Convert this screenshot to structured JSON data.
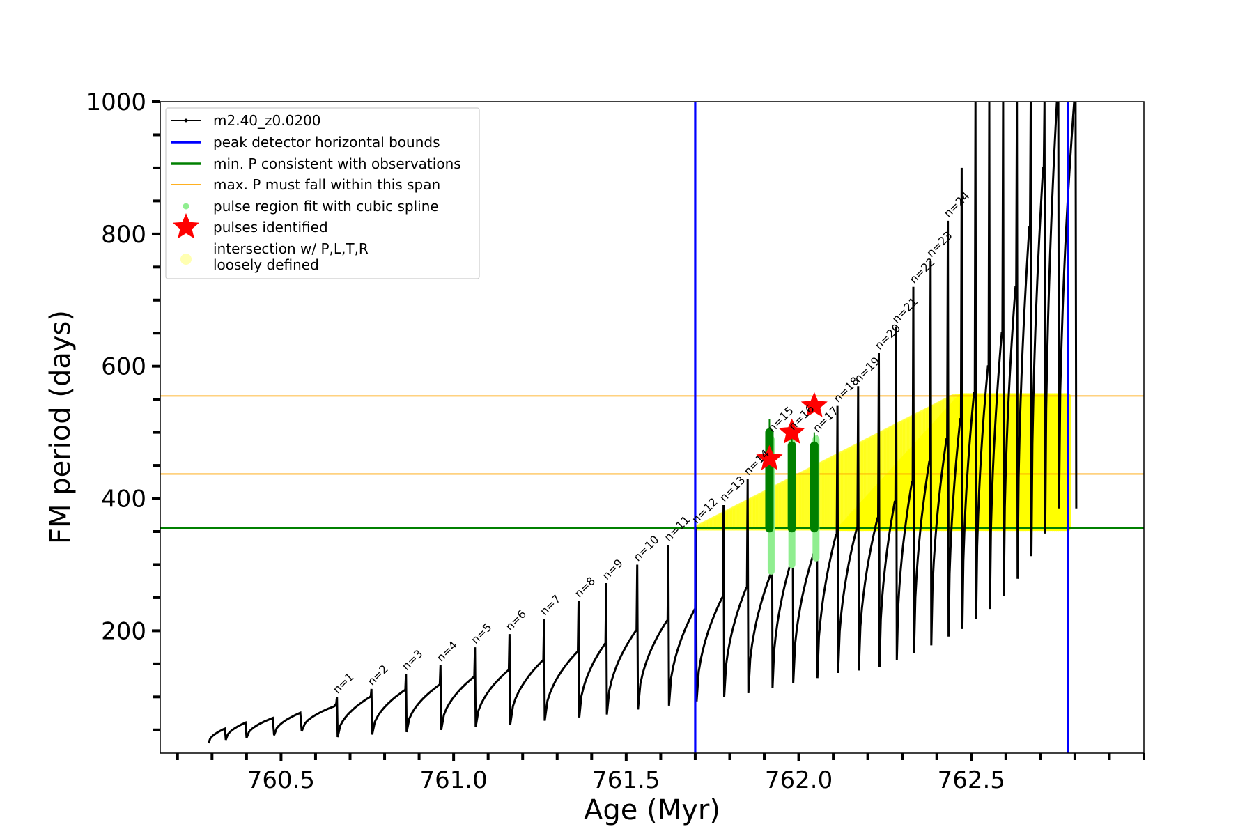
{
  "chart_data": {
    "type": "line",
    "title": "",
    "xlabel": "Age (Myr)",
    "ylabel": "FM period (days)",
    "xlim": [
      760.15,
      763.0
    ],
    "ylim": [
      15,
      1000
    ],
    "xticks": [
      760.5,
      761.0,
      761.5,
      762.0,
      762.5
    ],
    "xtick_labels": [
      "760.5",
      "761.0",
      "761.5",
      "762.0",
      "762.5"
    ],
    "yticks": [
      200,
      400,
      600,
      800,
      1000
    ],
    "ytick_labels": [
      "200",
      "400",
      "600",
      "800",
      "1000"
    ],
    "grid": false,
    "legend_position": "top-left",
    "colors": {
      "series": "#000000",
      "bounds": "#0000ff",
      "min_p": "#008000",
      "max_p": "#ffa500",
      "spline": "#90ee90",
      "pulses": "#ff0000",
      "intersection": "#ffff00"
    },
    "legend": [
      {
        "label": "m2.40_z0.0200",
        "marker": "line-dot"
      },
      {
        "label": "peak detector horizontal bounds",
        "marker": "blue-line"
      },
      {
        "label": "min. P consistent with observations",
        "marker": "green-line"
      },
      {
        "label": "max. P must fall within this span",
        "marker": "orange-line"
      },
      {
        "label": "pulse region fit with cubic spline",
        "marker": "lightgreen-dot"
      },
      {
        "label": "pulses identified",
        "marker": "red-star"
      },
      {
        "label": "intersection w/ P,L,T,R",
        "label2": "loosely defined",
        "marker": "yellow-dot"
      }
    ],
    "series_name": "m2.40_z0.0200",
    "pulses": [
      {
        "label": "n=1",
        "x": 760.66,
        "peak": 100,
        "pre": 90
      },
      {
        "label": "n=2",
        "x": 760.76,
        "peak": 112,
        "pre": 100
      },
      {
        "label": "n=3",
        "x": 760.86,
        "peak": 135,
        "pre": 110
      },
      {
        "label": "n=4",
        "x": 760.96,
        "peak": 148,
        "pre": 118
      },
      {
        "label": "n=5",
        "x": 761.06,
        "peak": 175,
        "pre": 130
      },
      {
        "label": "n=6",
        "x": 761.16,
        "peak": 195,
        "pre": 140
      },
      {
        "label": "n=7",
        "x": 761.26,
        "peak": 218,
        "pre": 155
      },
      {
        "label": "n=8",
        "x": 761.36,
        "peak": 245,
        "pre": 168
      },
      {
        "label": "n=9",
        "x": 761.44,
        "peak": 272,
        "pre": 180
      },
      {
        "label": "n=10",
        "x": 761.53,
        "peak": 300,
        "pre": 200
      },
      {
        "label": "n=11",
        "x": 761.62,
        "peak": 330,
        "pre": 215
      },
      {
        "label": "n=12",
        "x": 761.7,
        "peak": 357,
        "pre": 232
      },
      {
        "label": "n=13",
        "x": 761.78,
        "peak": 390,
        "pre": 250
      },
      {
        "label": "n=14",
        "x": 761.85,
        "peak": 430,
        "pre": 265
      },
      {
        "label": "n=15",
        "x": 761.92,
        "peak": 495,
        "pre": 285
      },
      {
        "label": "n=16",
        "x": 761.98,
        "peak": 498,
        "pre": 305
      },
      {
        "label": "n=17",
        "x": 762.05,
        "peak": 495,
        "pre": 325
      },
      {
        "label": "n=18",
        "x": 762.11,
        "peak": 540,
        "pre": 345
      },
      {
        "label": "n=19",
        "x": 762.17,
        "peak": 570,
        "pre": 355
      },
      {
        "label": "n=20",
        "x": 762.23,
        "peak": 620,
        "pre": 370
      },
      {
        "label": "n=21",
        "x": 762.28,
        "peak": 660,
        "pre": 395
      },
      {
        "label": "n=22",
        "x": 762.33,
        "peak": 720,
        "pre": 425
      },
      {
        "label": "n=23",
        "x": 762.38,
        "peak": 760,
        "pre": 455
      },
      {
        "label": "n=24",
        "x": 762.43,
        "peak": 820,
        "pre": 490
      },
      {
        "label": "",
        "x": 762.47,
        "peak": 900,
        "pre": 520
      },
      {
        "label": "",
        "x": 762.51,
        "peak": 1000,
        "pre": 560
      },
      {
        "label": "",
        "x": 762.55,
        "peak": 1000,
        "pre": 600
      },
      {
        "label": "",
        "x": 762.59,
        "peak": 1000,
        "pre": 650
      },
      {
        "label": "",
        "x": 762.63,
        "peak": 1000,
        "pre": 720
      },
      {
        "label": "",
        "x": 762.67,
        "peak": 1000,
        "pre": 810
      },
      {
        "label": "",
        "x": 762.71,
        "peak": 1000,
        "pre": 900
      },
      {
        "label": "",
        "x": 762.75,
        "peak": 1000,
        "pre": 1000
      },
      {
        "label": "",
        "x": 762.8,
        "peak": 1000,
        "pre": 1000
      }
    ],
    "pulse_troughs": [
      {
        "x": 760.29,
        "y": 30
      },
      {
        "x": 760.34,
        "y": 35
      },
      {
        "x": 760.4,
        "y": 38
      },
      {
        "x": 760.48,
        "y": 42
      },
      {
        "x": 760.56,
        "y": 48
      }
    ],
    "series_start": {
      "x": 760.27,
      "y": 25
    },
    "bounds_x": [
      761.7,
      762.78
    ],
    "min_p": 355,
    "max_p_span": [
      437,
      555
    ],
    "spline_regions": [
      {
        "x": 761.92,
        "y_low": 290,
        "y_high": 490
      },
      {
        "x": 761.98,
        "y_low": 300,
        "y_high": 495
      },
      {
        "x": 762.05,
        "y_low": 310,
        "y_high": 490
      }
    ],
    "green_bars": [
      {
        "x": 761.915,
        "y_low": 355,
        "y_high": 520
      },
      {
        "x": 761.98,
        "y_low": 355,
        "y_high": 500
      },
      {
        "x": 762.045,
        "y_low": 355,
        "y_high": 500
      }
    ],
    "pulses_identified": [
      {
        "x": 761.915,
        "y": 460
      },
      {
        "x": 761.98,
        "y": 500
      },
      {
        "x": 762.045,
        "y": 540
      }
    ],
    "intersection_region": {
      "x_start": 761.7,
      "x_end": 762.78,
      "y_low": 355,
      "y_high": 555
    }
  }
}
